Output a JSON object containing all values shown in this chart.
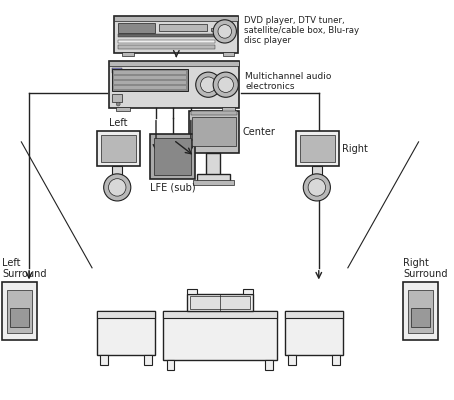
{
  "bg_color": "#ffffff",
  "line_color": "#222222",
  "device_fill": "#d8d8d8",
  "device_fill_dark": "#a0a0a0",
  "device_fill_light": "#eeeeee",
  "dark_fill": "#888888",
  "mid_fill": "#b8b8b8",
  "furniture_fill": "#f0f0f0",
  "sofa_fill": "#e0e0e0",
  "label_dvd": "DVD player, DTV tuner,\nsatellite/cable box, Blu-ray\ndisc player",
  "label_amp": "Multichannel audio\nelectronics",
  "label_left": "Left",
  "label_right": "Right",
  "label_center": "Center",
  "label_lfe": "LFE (sub)",
  "label_left_surround": "Left\nSurround",
  "label_right_surround": "Right\nSurround",
  "figsize": [
    4.54,
    4.0
  ],
  "dpi": 100
}
